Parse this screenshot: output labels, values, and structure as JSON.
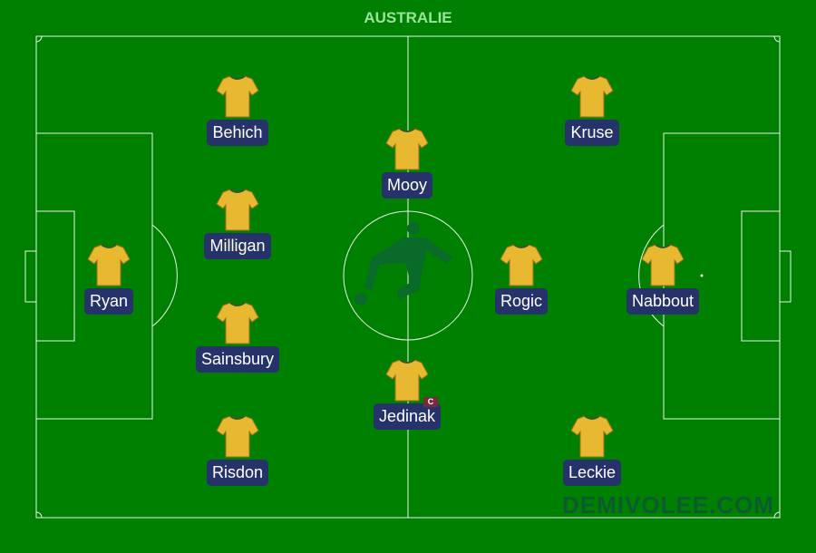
{
  "team_name": "AUSTRALIE",
  "watermark": "DEMIVOLEE.COM",
  "colors": {
    "pitch": "#008000",
    "label_bg": "#25336a",
    "shirt": "#e8b830",
    "captain_badge": "#7a2a3a"
  },
  "captain_badge": "C",
  "players": [
    {
      "name": "Behich",
      "captain": false
    },
    {
      "name": "Kruse",
      "captain": false
    },
    {
      "name": "Mooy",
      "captain": false
    },
    {
      "name": "Milligan",
      "captain": false
    },
    {
      "name": "Ryan",
      "captain": false
    },
    {
      "name": "Rogic",
      "captain": false
    },
    {
      "name": "Nabbout",
      "captain": false
    },
    {
      "name": "Sainsbury",
      "captain": false
    },
    {
      "name": "Jedinak",
      "captain": true
    },
    {
      "name": "Risdon",
      "captain": false
    },
    {
      "name": "Leckie",
      "captain": false
    }
  ]
}
